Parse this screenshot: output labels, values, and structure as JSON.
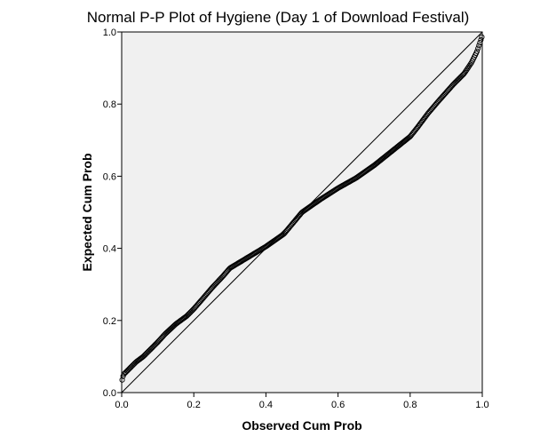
{
  "chart_data": {
    "type": "scatter",
    "title": "Normal P-P Plot of Hygiene (Day 1 of Download Festival)",
    "xlabel": "Observed Cum Prob",
    "ylabel": "Expected Cum Prob",
    "xlim": [
      0.0,
      1.0
    ],
    "ylim": [
      0.0,
      1.0
    ],
    "x_ticks": [
      "0.0",
      "0.2",
      "0.4",
      "0.6",
      "0.8",
      "1.0"
    ],
    "y_ticks": [
      "0.0",
      "0.2",
      "0.4",
      "0.6",
      "0.8",
      "1.0"
    ],
    "grid": false,
    "legend": "none",
    "reference_line": [
      [
        0,
        0
      ],
      [
        1,
        1
      ]
    ],
    "curve_points": [
      [
        0.0,
        0.03
      ],
      [
        0.005,
        0.05
      ],
      [
        0.02,
        0.065
      ],
      [
        0.04,
        0.085
      ],
      [
        0.06,
        0.1
      ],
      [
        0.08,
        0.12
      ],
      [
        0.1,
        0.14
      ],
      [
        0.12,
        0.162
      ],
      [
        0.15,
        0.19
      ],
      [
        0.18,
        0.212
      ],
      [
        0.2,
        0.232
      ],
      [
        0.22,
        0.255
      ],
      [
        0.25,
        0.29
      ],
      [
        0.28,
        0.322
      ],
      [
        0.3,
        0.345
      ],
      [
        0.35,
        0.375
      ],
      [
        0.4,
        0.405
      ],
      [
        0.45,
        0.44
      ],
      [
        0.5,
        0.5
      ],
      [
        0.55,
        0.535
      ],
      [
        0.6,
        0.567
      ],
      [
        0.65,
        0.595
      ],
      [
        0.7,
        0.63
      ],
      [
        0.75,
        0.67
      ],
      [
        0.8,
        0.71
      ],
      [
        0.82,
        0.735
      ],
      [
        0.85,
        0.775
      ],
      [
        0.88,
        0.81
      ],
      [
        0.92,
        0.855
      ],
      [
        0.95,
        0.885
      ],
      [
        0.97,
        0.915
      ],
      [
        0.985,
        0.945
      ],
      [
        0.995,
        0.975
      ],
      [
        1.0,
        0.99
      ]
    ],
    "point_count": 380,
    "colors": {
      "plot_background": "#f0f0f0",
      "marker_stroke": "#000000",
      "reference_line": "#000000"
    }
  }
}
